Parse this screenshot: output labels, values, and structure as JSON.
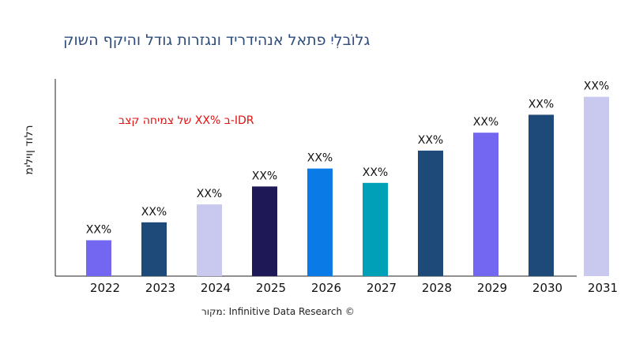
{
  "chart_data": {
    "type": "bar",
    "title": "קושה ףקיהו לדוג תורזגנו דירדיהנא לאתפ יִלְבוֹלג",
    "ylabel": "מיליון דולר",
    "xlabel": "",
    "annotation": "בצק החימצ לש XX% ב-IDR",
    "source": "רוקמ: Infinitive Data Research ©",
    "categories": [
      "2022",
      "2023",
      "2024",
      "2025",
      "2026",
      "2027",
      "2028",
      "2029",
      "2030",
      "2031"
    ],
    "values": [
      20,
      30,
      40,
      50,
      60,
      52,
      70,
      80,
      90,
      100
    ],
    "data_labels": [
      "XX%",
      "XX%",
      "XX%",
      "XX%",
      "XX%",
      "XX%",
      "XX%",
      "XX%",
      "XX%",
      "XX%"
    ],
    "colors": [
      "#7366f0",
      "#1e4a7a",
      "#c9c9f0",
      "#1e1856",
      "#0a7be6",
      "#00a0b8",
      "#1e4a7a",
      "#7366f0",
      "#1e4a7a",
      "#c9c9f0"
    ],
    "ylim": [
      0,
      110
    ],
    "grid": false,
    "legend": "none"
  }
}
